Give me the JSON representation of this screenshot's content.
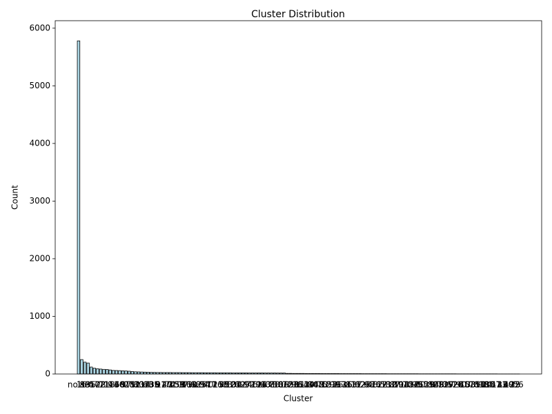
{
  "chart_data": {
    "type": "bar",
    "title": "Cluster Distribution",
    "x_label": "Cluster",
    "y_label": "Count",
    "categories": [
      "noise",
      "16",
      "89",
      "135",
      "4",
      "57",
      "102",
      "23",
      "71",
      "118",
      "9",
      "44",
      "130",
      "66",
      "3",
      "97",
      "28",
      "112",
      "51",
      "80",
      "137",
      "14",
      "63",
      "105",
      "36",
      "8",
      "91",
      "120",
      "47",
      "74",
      "2",
      "133",
      "59",
      "17",
      "86",
      "110",
      "31",
      "68",
      "125",
      "5",
      "94",
      "40",
      "77",
      "116",
      "21",
      "138",
      "55",
      "83",
      "12",
      "101",
      "34",
      "69",
      "127",
      "1",
      "92",
      "46",
      "79",
      "114",
      "25",
      "60",
      "131",
      "7",
      "88",
      "38",
      "106",
      "19",
      "72",
      "123",
      "50",
      "96",
      "11",
      "64",
      "134",
      "29",
      "84",
      "108",
      "42",
      "75",
      "0",
      "121",
      "53",
      "99",
      "26",
      "67",
      "136",
      "15",
      "81",
      "111",
      "37",
      "62",
      "128",
      "6",
      "93",
      "48",
      "76",
      "117",
      "22",
      "58",
      "132",
      "10",
      "87",
      "39",
      "104",
      "18",
      "70",
      "124",
      "52",
      "95",
      "30",
      "65",
      "129",
      "13",
      "82",
      "109",
      "43",
      "73",
      "119",
      "27",
      "61",
      "126",
      "20",
      "90",
      "45",
      "103",
      "33",
      "78",
      "115",
      "54",
      "98",
      "24",
      "85",
      "107",
      "41",
      "113",
      "32",
      "100",
      "49",
      "122",
      "35",
      "56"
    ],
    "values": [
      5780,
      250,
      205,
      190,
      120,
      100,
      90,
      85,
      80,
      78,
      70,
      62,
      60,
      58,
      55,
      52,
      48,
      42,
      38,
      36,
      34,
      32,
      30,
      28,
      27,
      26,
      26,
      25,
      25,
      25,
      24,
      24,
      24,
      23,
      23,
      23,
      22,
      22,
      22,
      22,
      21,
      21,
      21,
      21,
      20,
      20,
      20,
      20,
      20,
      19,
      19,
      19,
      19,
      19,
      18,
      18,
      18,
      18,
      18,
      17,
      17,
      17,
      17,
      16,
      16,
      16,
      10,
      10,
      9,
      9,
      9,
      9,
      8,
      8,
      8,
      8,
      8,
      7,
      7,
      7,
      7,
      7,
      7,
      6,
      6,
      6,
      6,
      6,
      6,
      6,
      5,
      5,
      5,
      5,
      5,
      5,
      5,
      5,
      4,
      4,
      4,
      4,
      4,
      4,
      4,
      4,
      4,
      4,
      3,
      3,
      3,
      3,
      3,
      3,
      3,
      3,
      3,
      3,
      3,
      3,
      2,
      2,
      2,
      2,
      2,
      2,
      2,
      2,
      2,
      2,
      2,
      2,
      2,
      1,
      1,
      1,
      1,
      1,
      1,
      1
    ],
    "color": "#add8e6",
    "edge_color": "#000000",
    "ylim": [
      0,
      6130
    ],
    "yticks": [
      0,
      1000,
      2000,
      3000,
      4000,
      5000,
      6000
    ],
    "grid": false
  }
}
